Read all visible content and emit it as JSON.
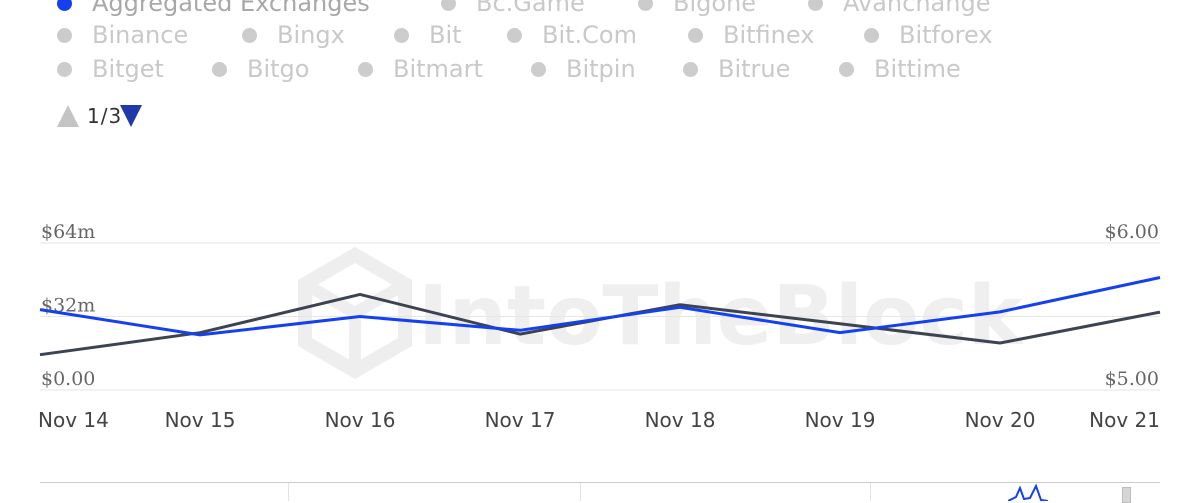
{
  "legend": {
    "rows": [
      [
        {
          "label": "Aggregated Exchanges",
          "active": true
        },
        {
          "label": "Bc.Game",
          "active": false
        },
        {
          "label": "Bigone",
          "active": false
        },
        {
          "label": "Avanchange",
          "active": false
        }
      ],
      [
        {
          "label": "Binance",
          "active": false
        },
        {
          "label": "Bingx",
          "active": false
        },
        {
          "label": "Bit",
          "active": false
        },
        {
          "label": "Bit.Com",
          "active": false
        },
        {
          "label": "Bitfinex",
          "active": false
        },
        {
          "label": "Bitforex",
          "active": false
        }
      ],
      [
        {
          "label": "Bitget",
          "active": false
        },
        {
          "label": "Bitgo",
          "active": false
        },
        {
          "label": "Bitmart",
          "active": false
        },
        {
          "label": "Bitpin",
          "active": false
        },
        {
          "label": "Bitrue",
          "active": false
        },
        {
          "label": "Bittime",
          "active": false
        }
      ]
    ],
    "pager": "1/3"
  },
  "watermark": "IntoTheBlock",
  "colors": {
    "volume": "#1540f0",
    "price": "#3d4451",
    "grid": "#e6e6e6"
  },
  "chart_data": {
    "type": "line",
    "x": [
      "Nov 14",
      "Nov 15",
      "Nov 16",
      "Nov 17",
      "Nov 18",
      "Nov 19",
      "Nov 20",
      "Nov 21"
    ],
    "y_left": {
      "ticks": [
        "$0.00",
        "$32m",
        "$64m"
      ],
      "ylim": [
        0,
        64
      ]
    },
    "y_right": {
      "ticks": [
        "$5.00",
        "$6.00"
      ],
      "ylim": [
        5.0,
        6.0
      ]
    },
    "grid": true,
    "series": [
      {
        "axis": "left",
        "values": [
          35,
          24,
          32,
          26,
          36,
          25,
          34,
          49
        ]
      },
      {
        "axis": "right",
        "values": [
          5.24,
          5.39,
          5.65,
          5.38,
          5.58,
          5.45,
          5.32,
          5.53
        ]
      }
    ]
  }
}
